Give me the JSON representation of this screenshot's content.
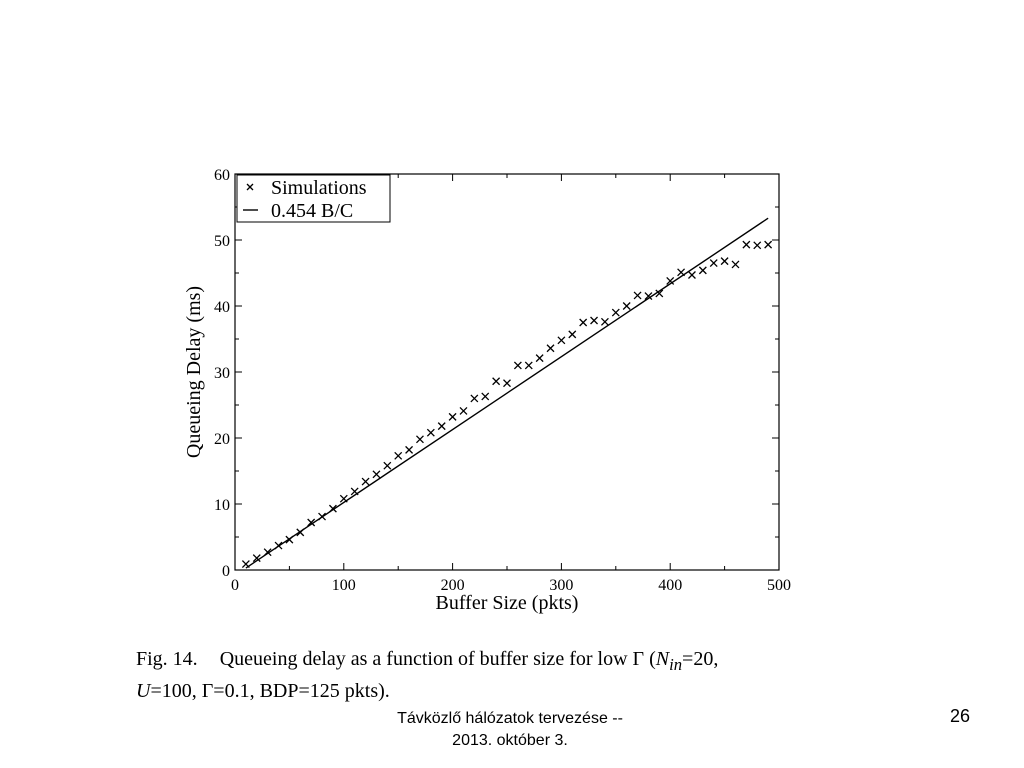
{
  "chart_data": {
    "type": "scatter",
    "xlabel": "Buffer Size (pkts)",
    "ylabel": "Queueing Delay (ms)",
    "xlim": [
      0,
      500
    ],
    "ylim": [
      0,
      60
    ],
    "xticks": [
      0,
      100,
      200,
      300,
      400,
      500
    ],
    "yticks": [
      0,
      10,
      20,
      30,
      40,
      50,
      60
    ],
    "grid": false,
    "legend_position": "top-left",
    "series": [
      {
        "name": "Simulations",
        "marker": "x",
        "x": [
          10,
          20,
          30,
          40,
          50,
          60,
          70,
          80,
          90,
          100,
          110,
          120,
          130,
          140,
          150,
          160,
          170,
          180,
          190,
          200,
          210,
          220,
          230,
          240,
          250,
          260,
          270,
          280,
          290,
          300,
          310,
          320,
          330,
          340,
          350,
          360,
          370,
          380,
          390,
          400,
          410,
          420,
          430,
          440,
          450,
          460,
          470,
          480,
          490
        ],
        "y": [
          0.9,
          1.8,
          2.7,
          3.7,
          4.6,
          5.7,
          7.2,
          8.1,
          9.3,
          10.8,
          11.9,
          13.4,
          14.5,
          15.8,
          17.3,
          18.2,
          19.8,
          20.8,
          21.8,
          23.2,
          24.1,
          26.0,
          26.3,
          28.6,
          28.3,
          31.0,
          31.0,
          32.1,
          33.6,
          34.8,
          35.7,
          37.5,
          37.8,
          37.6,
          39.0,
          40.0,
          41.6,
          41.5,
          41.9,
          43.8,
          45.1,
          44.7,
          45.4,
          46.5,
          46.8,
          46.3,
          49.3,
          49.2,
          49.3
        ]
      },
      {
        "name": "0.454 B/C",
        "line": true,
        "x": [
          10,
          490
        ],
        "y": [
          0.3,
          53.3
        ]
      }
    ]
  },
  "caption": {
    "fig_label": "Fig. 14.",
    "text_part1": "Queueing delay as a function of buffer size for low Γ (",
    "n_var": "N",
    "n_sub": "in",
    "text_part2": "=20,",
    "u_var": "U",
    "text_part3": "=100, Γ=0.1, BDP=125 pkts)."
  },
  "footer": {
    "line1": "Távközlő hálózatok tervezése --",
    "line2": "2013. október 3."
  },
  "page_number": "26"
}
